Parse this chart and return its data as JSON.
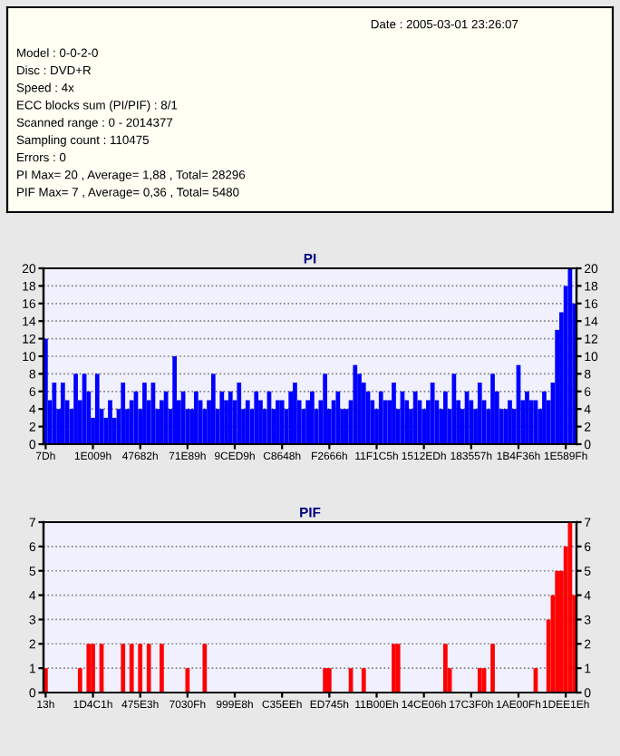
{
  "chart_data": [
    {
      "type": "other",
      "annotations": [
        "Date : 2005-03-01 23:26:07",
        "Model : 0-0-2-0",
        "Disc : DVD+R",
        "Speed : 4x",
        "ECC blocks sum (PI/PIF) : 8/1",
        "Scanned range : 0 - 2014377",
        "Sampling count : 110475",
        "Errors : 0",
        "PI Max= 20 , Average= 1,88 , Total= 28296",
        "PIF Max= 7 , Average= 0,36 , Total= 5480"
      ]
    },
    {
      "type": "bar",
      "title": "PI",
      "categories": [
        "7Dh",
        null,
        null,
        null,
        null,
        null,
        null,
        null,
        null,
        null,
        null,
        "1E009h",
        null,
        null,
        null,
        null,
        null,
        null,
        null,
        null,
        null,
        null,
        "47682h",
        null,
        null,
        null,
        null,
        null,
        null,
        null,
        null,
        null,
        null,
        "71E89h",
        null,
        null,
        null,
        null,
        null,
        null,
        null,
        null,
        null,
        null,
        "9CED9h",
        null,
        null,
        null,
        null,
        null,
        null,
        null,
        null,
        null,
        null,
        "C8648h",
        null,
        null,
        null,
        null,
        null,
        null,
        null,
        null,
        null,
        null,
        "F2666h",
        null,
        null,
        null,
        null,
        null,
        null,
        null,
        null,
        null,
        null,
        "11F1C5h",
        null,
        null,
        null,
        null,
        null,
        null,
        null,
        null,
        null,
        null,
        "1512EDh",
        null,
        null,
        null,
        null,
        null,
        null,
        null,
        null,
        null,
        null,
        "183557h",
        null,
        null,
        null,
        null,
        null,
        null,
        null,
        null,
        null,
        null,
        "1B4F36h",
        null,
        null,
        null,
        null,
        null,
        null,
        null,
        null,
        null,
        null,
        "1E589Fh",
        null,
        null
      ],
      "series": [
        {
          "color": "#0000ff",
          "values": [
            12,
            5,
            7,
            4,
            7,
            5,
            4,
            8,
            5,
            8,
            6,
            3,
            8,
            4,
            3,
            5,
            3,
            4,
            7,
            4,
            5,
            6,
            4,
            7,
            5,
            7,
            4,
            5,
            6,
            4,
            10,
            5,
            6,
            4,
            4,
            6,
            5,
            4,
            5,
            8,
            4,
            6,
            5,
            6,
            5,
            7,
            4,
            5,
            4,
            6,
            5,
            4,
            6,
            4,
            5,
            5,
            4,
            6,
            7,
            5,
            4,
            5,
            6,
            4,
            5,
            8,
            4,
            5,
            6,
            4,
            4,
            5,
            9,
            8,
            7,
            6,
            5,
            4,
            6,
            5,
            5,
            7,
            4,
            6,
            5,
            4,
            6,
            5,
            4,
            5,
            7,
            5,
            4,
            6,
            4,
            8,
            5,
            4,
            6,
            5,
            4,
            7,
            5,
            4,
            8,
            6,
            4,
            4,
            5,
            4,
            9,
            5,
            6,
            5,
            5,
            4,
            6,
            5,
            7,
            13,
            15,
            18,
            20,
            16
          ]
        }
      ],
      "ylim": [
        0,
        20
      ],
      "yticks": [
        0,
        2,
        4,
        6,
        8,
        10,
        12,
        14,
        16,
        18,
        20
      ],
      "y2lim": [
        0,
        20
      ],
      "y2ticks": [
        0,
        2,
        4,
        6,
        8,
        10,
        12,
        14,
        16,
        18,
        20
      ],
      "grid": "y"
    },
    {
      "type": "bar",
      "title": "PIF",
      "categories": [
        "13h",
        null,
        null,
        null,
        null,
        null,
        null,
        null,
        null,
        null,
        null,
        "1D4C1h",
        null,
        null,
        null,
        null,
        null,
        null,
        null,
        null,
        null,
        null,
        "475E3h",
        null,
        null,
        null,
        null,
        null,
        null,
        null,
        null,
        null,
        null,
        "7030Fh",
        null,
        null,
        null,
        null,
        null,
        null,
        null,
        null,
        null,
        null,
        "999E8h",
        null,
        null,
        null,
        null,
        null,
        null,
        null,
        null,
        null,
        null,
        "C35EEh",
        null,
        null,
        null,
        null,
        null,
        null,
        null,
        null,
        null,
        null,
        "ED745h",
        null,
        null,
        null,
        null,
        null,
        null,
        null,
        null,
        null,
        null,
        "11B00Eh",
        null,
        null,
        null,
        null,
        null,
        null,
        null,
        null,
        null,
        null,
        "14CE06h",
        null,
        null,
        null,
        null,
        null,
        null,
        null,
        null,
        null,
        null,
        "17C3F0h",
        null,
        null,
        null,
        null,
        null,
        null,
        null,
        null,
        null,
        null,
        "1AE00Fh",
        null,
        null,
        null,
        null,
        null,
        null,
        null,
        null,
        null,
        null,
        "1DEE1Eh",
        null,
        null
      ],
      "series": [
        {
          "color": "#ff0000",
          "values": [
            1,
            0,
            0,
            0,
            0,
            0,
            0,
            0,
            1,
            0,
            2,
            2,
            0,
            2,
            0,
            0,
            0,
            0,
            2,
            0,
            2,
            0,
            2,
            0,
            2,
            0,
            0,
            2,
            0,
            0,
            0,
            0,
            0,
            1,
            0,
            0,
            0,
            2,
            0,
            0,
            0,
            0,
            0,
            0,
            0,
            0,
            0,
            0,
            0,
            0,
            0,
            0,
            0,
            0,
            0,
            0,
            0,
            0,
            0,
            0,
            0,
            0,
            0,
            0,
            0,
            1,
            1,
            0,
            0,
            0,
            0,
            1,
            0,
            0,
            1,
            0,
            0,
            0,
            0,
            0,
            0,
            2,
            2,
            0,
            0,
            0,
            0,
            0,
            0,
            0,
            0,
            0,
            0,
            2,
            1,
            0,
            0,
            0,
            0,
            0,
            0,
            1,
            1,
            0,
            2,
            0,
            0,
            0,
            0,
            0,
            0,
            0,
            0,
            0,
            1,
            0,
            0,
            3,
            4,
            5,
            5,
            6,
            7,
            4
          ]
        }
      ],
      "ylim": [
        0,
        7
      ],
      "yticks": [
        0,
        1,
        2,
        3,
        4,
        5,
        6,
        7
      ],
      "y2lim": [
        0,
        7
      ],
      "y2ticks": [
        0,
        1,
        2,
        3,
        4,
        5,
        6,
        7
      ],
      "grid": "y"
    }
  ]
}
